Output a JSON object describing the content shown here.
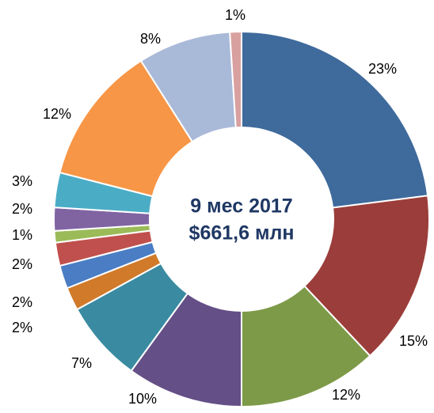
{
  "chart_data": {
    "type": "donut",
    "center_text": [
      "9 мес 2017",
      "$661,6 млн"
    ],
    "values": [
      23,
      15,
      12,
      10,
      7,
      2,
      2,
      2,
      1,
      2,
      3,
      12,
      8,
      1
    ],
    "value_labels": [
      "23%",
      "15%",
      "12%",
      "10%",
      "7%",
      "2%",
      "2%",
      "2%",
      "1%",
      "2%",
      "3%",
      "12%",
      "8%",
      "1%"
    ],
    "colors": [
      "#3f6a9c",
      "#9b3d3a",
      "#7d9a48",
      "#644f86",
      "#3a8ba1",
      "#d07a2a",
      "#4a7dc4",
      "#c0504d",
      "#9bbb59",
      "#8064a2",
      "#4bacc6",
      "#f79646",
      "#a9b9d8",
      "#d9a0a0"
    ]
  }
}
